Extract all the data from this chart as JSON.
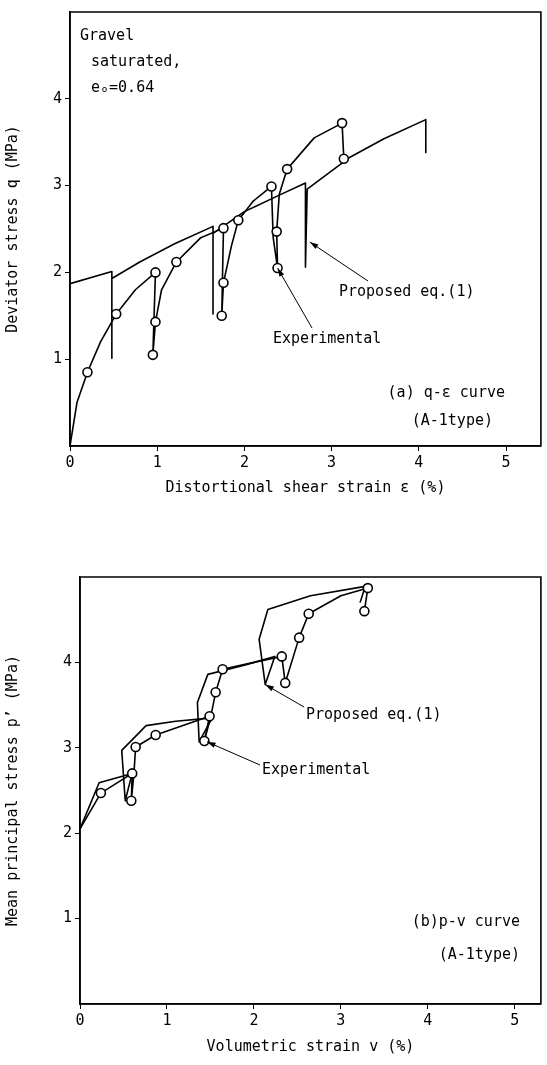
{
  "chart_data": [
    {
      "type": "line",
      "xlabel": "Distortional shear strain ε (%)",
      "ylabel": "Deviator stress q (MPa)",
      "xlim": [
        0,
        5.4
      ],
      "xticks": [
        0,
        1,
        2,
        3,
        4,
        5
      ],
      "ylim": [
        0,
        5
      ],
      "yticks": [
        1,
        2,
        3,
        4
      ],
      "grid": false,
      "series": [
        {
          "type": "line",
          "color": "#000000",
          "marker": "none",
          "x": [
            0,
            0.48,
            0.48,
            0.48,
            0.8,
            1.2,
            1.64,
            1.64,
            1.64,
            2.0,
            2.4,
            2.7,
            2.7,
            2.72,
            3.2,
            3.6,
            4.08,
            4.08
          ],
          "values": [
            1.87,
            2.01,
            1.01,
            1.93,
            2.12,
            2.33,
            2.53,
            1.52,
            2.45,
            2.7,
            2.89,
            3.03,
            2.06,
            2.96,
            3.32,
            3.54,
            3.76,
            3.38
          ]
        },
        {
          "type": "line",
          "color": "#000000",
          "marker": "none",
          "x": [
            0,
            0.08,
            0.2,
            0.35,
            0.53,
            0.75,
            0.98,
            0.95,
            0.98,
            1.05,
            1.22,
            1.5,
            1.76,
            1.74,
            1.76,
            1.85,
            1.93,
            2.1,
            2.31,
            2.33,
            2.38,
            2.37,
            2.4,
            2.49,
            2.8,
            3.12,
            3.14
          ],
          "values": [
            0,
            0.5,
            0.85,
            1.2,
            1.52,
            1.8,
            2.0,
            1.05,
            1.43,
            1.8,
            2.12,
            2.4,
            2.51,
            1.5,
            1.88,
            2.3,
            2.6,
            2.82,
            2.99,
            2.4,
            2.05,
            2.47,
            2.9,
            3.19,
            3.55,
            3.72,
            3.31
          ]
        },
        {
          "type": "scatter",
          "color": "#000000",
          "marker": "circle",
          "x": [
            0.2,
            0.53,
            0.98,
            0.98,
            0.95,
            1.22,
            1.76,
            1.74,
            1.76,
            1.93,
            2.31,
            2.37,
            2.38,
            2.49,
            3.12,
            3.14
          ],
          "values": [
            0.85,
            1.52,
            2.0,
            1.43,
            1.05,
            2.12,
            2.51,
            1.5,
            1.88,
            2.6,
            2.99,
            2.47,
            2.05,
            3.19,
            3.72,
            3.31
          ]
        }
      ],
      "annotations": [
        "Gravel",
        "saturated,",
        "eₒ=0.64",
        {
          "text": "Proposed eq.(1)",
          "x": 2.75,
          "y": 2.35
        },
        {
          "text": "Experimental",
          "x": 2.38,
          "y": 2.05
        },
        "(a) q-ε curve",
        "(A-1type)"
      ]
    },
    {
      "type": "line",
      "xlabel": "Volumetric strain v (%)",
      "ylabel": "Mean principal stress p’ (MPa)",
      "xlim": [
        0,
        5.3
      ],
      "xticks": [
        0,
        1,
        2,
        3,
        4,
        5
      ],
      "ylim": [
        0,
        5
      ],
      "yticks": [
        1,
        2,
        3,
        4
      ],
      "grid": false,
      "series": [
        {
          "type": "line",
          "color": "#000000",
          "marker": "none",
          "x": [
            0,
            0.22,
            0.6,
            0.52,
            0.48,
            0.76,
            1.1,
            1.52,
            1.37,
            1.35,
            1.47,
            1.9,
            2.24,
            2.13,
            2.06,
            2.16,
            2.65,
            3.28,
            3.22
          ],
          "values": [
            2.05,
            2.59,
            2.7,
            2.38,
            2.97,
            3.26,
            3.31,
            3.35,
            3.07,
            3.53,
            3.86,
            3.97,
            4.07,
            3.74,
            4.27,
            4.62,
            4.78,
            4.89,
            4.7
          ]
        },
        {
          "type": "line",
          "color": "#000000",
          "marker": "none",
          "x": [
            0,
            0.24,
            0.6,
            0.59,
            0.62,
            0.64,
            0.87,
            1.49,
            1.43,
            1.5,
            1.56,
            1.64,
            2.0,
            2.32,
            2.36,
            2.52,
            2.63,
            3.0,
            3.31,
            3.27
          ],
          "values": [
            2.05,
            2.47,
            2.7,
            2.38,
            2.7,
            3.01,
            3.15,
            3.37,
            3.08,
            3.35,
            3.65,
            3.92,
            4.0,
            4.07,
            3.76,
            4.29,
            4.57,
            4.78,
            4.87,
            4.6
          ]
        },
        {
          "type": "scatter",
          "color": "#000000",
          "marker": "circle",
          "x": [
            0.24,
            0.6,
            0.59,
            0.64,
            0.87,
            1.49,
            1.43,
            1.56,
            1.64,
            2.32,
            2.36,
            2.52,
            2.63,
            3.31,
            3.27
          ],
          "values": [
            2.47,
            2.7,
            2.38,
            3.01,
            3.15,
            3.37,
            3.08,
            3.65,
            3.92,
            4.07,
            3.76,
            4.29,
            4.57,
            4.87,
            4.6
          ]
        }
      ],
      "annotations": [
        {
          "text": "Proposed eq.(1)",
          "x": 2.13,
          "y": 3.74
        },
        {
          "text": "Experimental",
          "x": 1.46,
          "y": 3.07
        },
        "(b)p-v curve",
        "(A-1type)"
      ]
    }
  ]
}
